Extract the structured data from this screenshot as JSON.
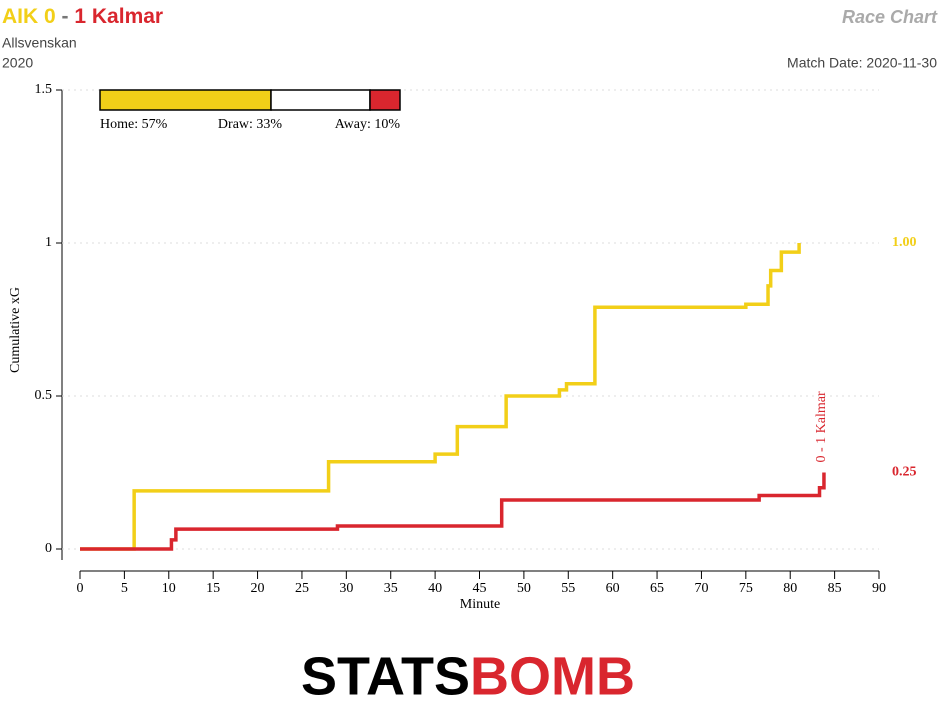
{
  "chart_data": {
    "type": "step",
    "title_parts": [
      {
        "text": "AIK 0",
        "color": "#f2cf18"
      },
      {
        "text": "-",
        "color": "#777777"
      },
      {
        "text": "1 Kalmar",
        "color": "#d9262e"
      }
    ],
    "subtitle": [
      "Allsvenskan",
      "2020"
    ],
    "chart_label": "Race Chart",
    "match_date": "Match Date: 2020-11-30",
    "xlabel": "Minute",
    "ylabel": "Cumulative xG",
    "xlim": [
      0,
      90
    ],
    "ylim": [
      0,
      1.5
    ],
    "xticks": [
      0,
      5,
      10,
      15,
      20,
      25,
      30,
      35,
      40,
      45,
      50,
      55,
      60,
      65,
      70,
      75,
      80,
      85,
      90
    ],
    "yticks": [
      0,
      0.5,
      1,
      1.5
    ],
    "grid": true,
    "series": [
      {
        "name": "AIK",
        "color": "#f2cf18",
        "end_label": "1.00",
        "x": [
          0,
          6.1,
          28,
          40,
          42.5,
          48,
          54,
          54.8,
          58,
          75,
          77.5,
          77.8,
          79,
          81
        ],
        "values": [
          0,
          0.19,
          0.285,
          0.31,
          0.4,
          0.5,
          0.52,
          0.54,
          0.79,
          0.8,
          0.86,
          0.91,
          0.97,
          1.0
        ]
      },
      {
        "name": "Kalmar",
        "color": "#d9262e",
        "end_label": "0.25",
        "x": [
          0,
          10.3,
          10.8,
          29,
          47.5,
          76.5,
          83.3,
          83.8
        ],
        "values": [
          0,
          0.03,
          0.065,
          0.075,
          0.16,
          0.175,
          0.2,
          0.25
        ]
      }
    ],
    "annotation": {
      "text": "0 - 1 Kalmar",
      "x": 84,
      "y": 0.25,
      "color": "#d9262e"
    },
    "probability_bar": {
      "values": [
        57,
        33,
        10
      ],
      "value_labels": [
        "Home: 57%",
        "Draw: 33%",
        "Away: 10%"
      ],
      "colors": [
        "#f2cf18",
        "#ffffff",
        "#d9262e"
      ]
    },
    "logo": [
      "STATS",
      "BOMB"
    ]
  }
}
